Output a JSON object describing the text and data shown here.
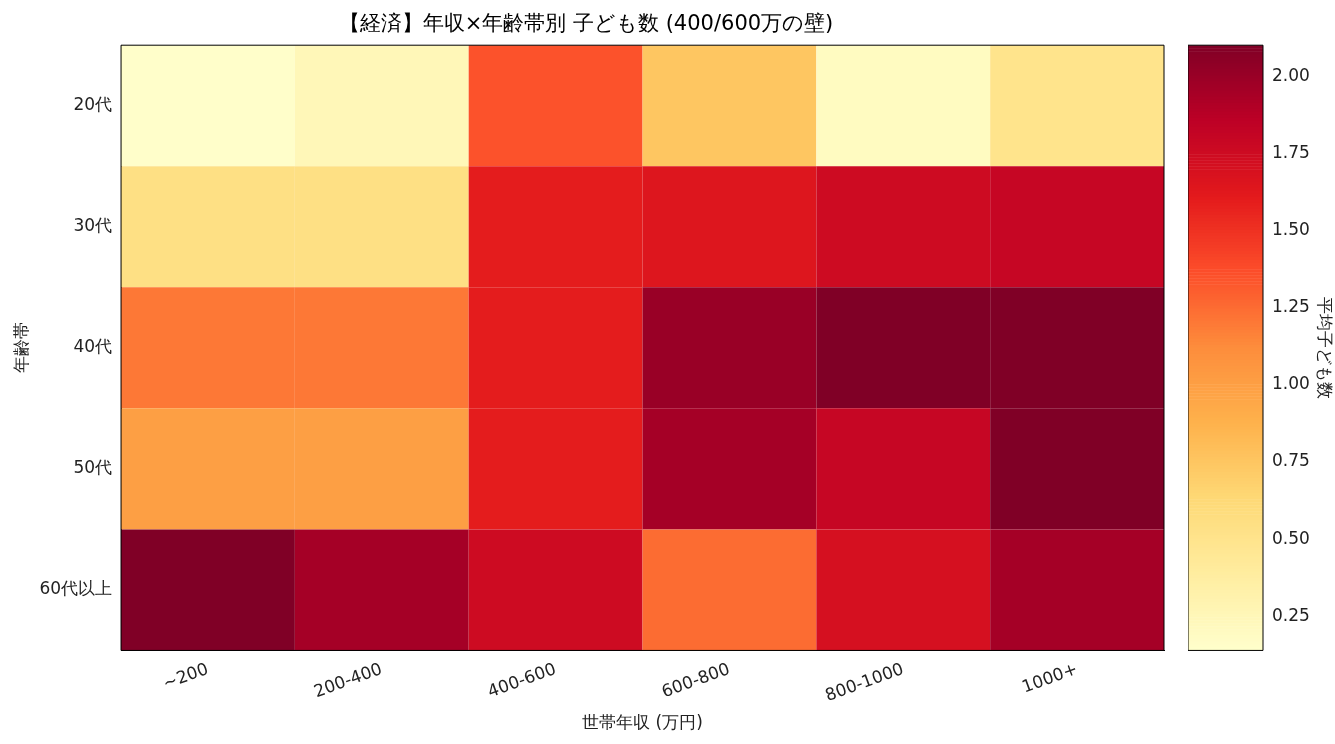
{
  "chart_data": {
    "type": "heatmap",
    "title": "【経済】年収×年齢帯別 子ども数 (400/600万の壁)",
    "xlabel": "世帯年収 (万円)",
    "ylabel": "年齢帯",
    "clabel": "平均子ども数",
    "categories": [
      "~200",
      "200-400",
      "400-600",
      "600-800",
      "800-1000",
      "1000+"
    ],
    "y_categories": [
      "20代",
      "30代",
      "40代",
      "50代",
      "60代以上"
    ],
    "cells": [
      [
        0.15,
        0.25,
        1.35,
        0.75,
        0.2,
        0.5
      ],
      [
        0.55,
        0.55,
        1.6,
        1.65,
        1.75,
        1.8
      ],
      [
        1.2,
        1.2,
        1.6,
        2.0,
        2.1,
        2.1
      ],
      [
        1.0,
        1.0,
        1.6,
        1.95,
        1.8,
        2.1
      ],
      [
        2.1,
        1.95,
        1.75,
        1.25,
        1.7,
        1.95
      ]
    ],
    "clim": [
      0.14,
      2.1
    ],
    "cticks": [
      0.25,
      {
        "value": 0.5,
        "label": "0.50"
      },
      0.75,
      {
        "value": 1.0,
        "label": "1.00"
      },
      1.25,
      {
        "value": 1.5,
        "label": "1.50"
      },
      1.75,
      {
        "value": 2.0,
        "label": "2.00"
      }
    ],
    "grid": false
  }
}
